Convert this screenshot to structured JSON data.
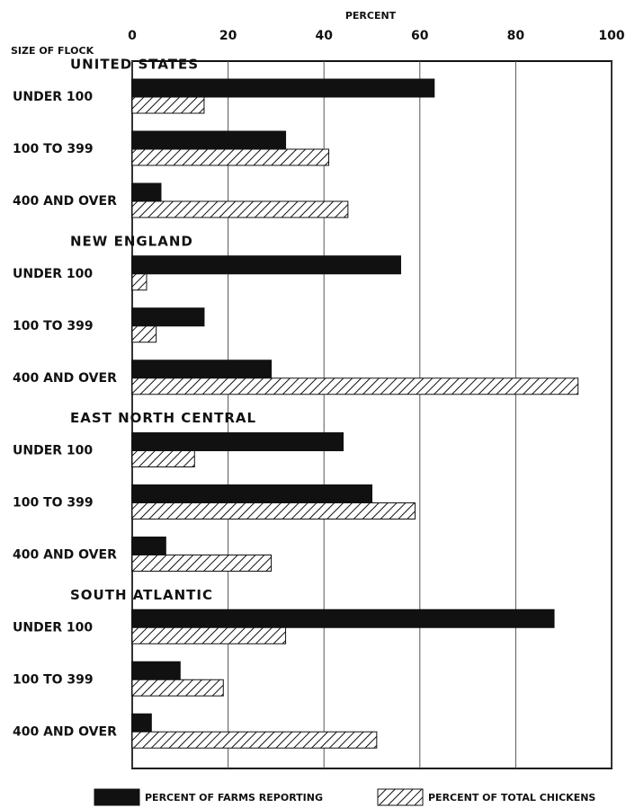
{
  "chart_data": {
    "type": "bar",
    "orientation": "horizontal",
    "x_label": "PERCENT",
    "y_label": "SIZE OF FLOCK",
    "groups": [
      "UNITED STATES",
      "NEW ENGLAND",
      "EAST NORTH CENTRAL",
      "SOUTH ATLANTIC"
    ],
    "categories": [
      "UNDER 100",
      "100 TO 399",
      "400 AND OVER",
      "UNDER 100",
      "100 TO 399",
      "400 AND OVER",
      "UNDER 100",
      "100 TO 399",
      "400 AND OVER",
      "UNDER 100",
      "100 TO 399",
      "400 AND OVER"
    ],
    "series": [
      {
        "name": "PERCENT OF FARMS REPORTING",
        "color": "#111111",
        "values": [
          63,
          32,
          6,
          56,
          15,
          29,
          44,
          50,
          7,
          88,
          10,
          4
        ]
      },
      {
        "name": "PERCENT OF TOTAL CHICKENS",
        "color": "hatch",
        "values": [
          15,
          41,
          45,
          3,
          5,
          93,
          13,
          59,
          29,
          32,
          19,
          51
        ]
      }
    ],
    "xlim": [
      0,
      100
    ],
    "xticks": [
      0,
      20,
      40,
      60,
      80,
      100
    ],
    "grid": true
  }
}
